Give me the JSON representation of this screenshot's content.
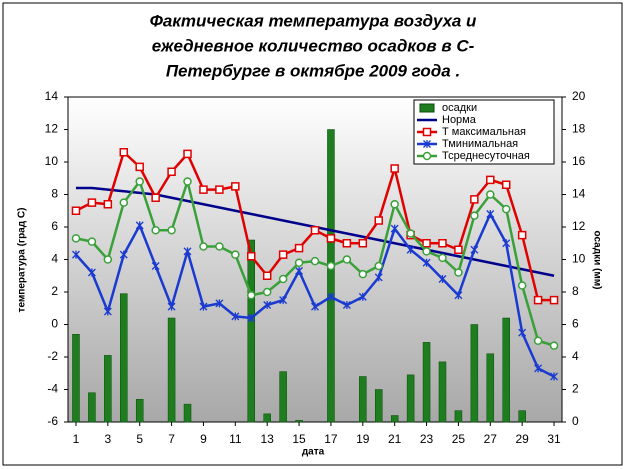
{
  "chart_data": {
    "type": "combo",
    "title": [
      "Фактическая температура воздуха и",
      "ежедневное количество осадков в С-",
      "Петербурге в октябре 2009 года ."
    ],
    "x_label": "дата",
    "y_label": "температура (град С)",
    "y2_label": "осадки (мм)",
    "x": [
      1,
      2,
      3,
      4,
      5,
      6,
      7,
      8,
      9,
      10,
      11,
      12,
      13,
      14,
      15,
      16,
      17,
      18,
      19,
      20,
      21,
      22,
      23,
      24,
      25,
      26,
      27,
      28,
      29,
      30,
      31
    ],
    "xlim": [
      0.5,
      31.5
    ],
    "xticks": [
      1,
      3,
      5,
      7,
      9,
      11,
      13,
      15,
      17,
      19,
      21,
      23,
      25,
      27,
      29,
      31
    ],
    "ylim": [
      -6,
      14
    ],
    "yticks": [
      -6,
      -4,
      -2,
      0,
      2,
      4,
      6,
      8,
      10,
      12,
      14
    ],
    "y2lim": [
      0,
      20
    ],
    "y2ticks": [
      0,
      2,
      4,
      6,
      8,
      10,
      12,
      14,
      16,
      18,
      20
    ],
    "legend": "top-right",
    "series": [
      {
        "name": "осадки",
        "type": "bar",
        "axis": "y2",
        "color": "#1e7d1e",
        "values": [
          5.4,
          1.8,
          4.1,
          7.9,
          1.4,
          0,
          6.4,
          1.1,
          0,
          0,
          0,
          11.2,
          0.5,
          3.1,
          0.1,
          0,
          18.0,
          0,
          2.8,
          2.0,
          0.4,
          2.9,
          4.9,
          3.7,
          0.7,
          6.0,
          4.2,
          6.4,
          0.7,
          0,
          0
        ]
      },
      {
        "name": "Норма",
        "type": "line",
        "marker": "none",
        "color": "#00008b",
        "values": [
          8.4,
          8.4,
          8.3,
          8.2,
          8.1,
          8.0,
          7.8,
          7.6,
          7.4,
          7.2,
          7.0,
          6.8,
          6.6,
          6.4,
          6.2,
          6.0,
          5.8,
          5.6,
          5.4,
          5.2,
          5.0,
          4.8,
          4.6,
          4.4,
          4.2,
          4.0,
          3.8,
          3.6,
          3.4,
          3.2,
          3.0
        ]
      },
      {
        "name": "Т максимальная",
        "type": "line",
        "marker": "square",
        "color": "#e00000",
        "values": [
          7.0,
          7.5,
          7.4,
          10.6,
          9.7,
          7.8,
          9.4,
          10.5,
          8.3,
          8.3,
          8.5,
          4.2,
          3.0,
          4.3,
          4.7,
          5.8,
          5.3,
          5.0,
          5.0,
          6.4,
          9.6,
          5.5,
          5.0,
          5.0,
          4.6,
          7.7,
          8.9,
          8.6,
          5.5,
          1.5,
          1.5
        ]
      },
      {
        "name": "Тминимальная",
        "type": "line",
        "marker": "cross",
        "color": "#1a3ad0",
        "values": [
          4.3,
          3.2,
          0.8,
          4.3,
          6.1,
          3.6,
          1.1,
          4.5,
          1.1,
          1.3,
          0.5,
          0.4,
          1.2,
          1.5,
          3.3,
          1.1,
          1.7,
          1.2,
          1.7,
          2.9,
          5.9,
          4.6,
          3.8,
          2.8,
          1.8,
          4.6,
          6.8,
          5.0,
          -0.5,
          -2.7,
          -3.2
        ]
      },
      {
        "name": "Тсреднесуточная",
        "type": "line",
        "marker": "circle",
        "color": "#3aa03a",
        "values": [
          5.3,
          5.1,
          4.0,
          7.5,
          8.8,
          5.8,
          5.8,
          8.8,
          4.8,
          4.8,
          4.3,
          1.8,
          2.0,
          2.8,
          3.8,
          3.9,
          3.6,
          4.0,
          3.1,
          3.6,
          7.4,
          5.6,
          4.5,
          4.1,
          3.2,
          6.7,
          8.0,
          7.1,
          2.4,
          -1.0,
          -1.3
        ]
      }
    ]
  }
}
